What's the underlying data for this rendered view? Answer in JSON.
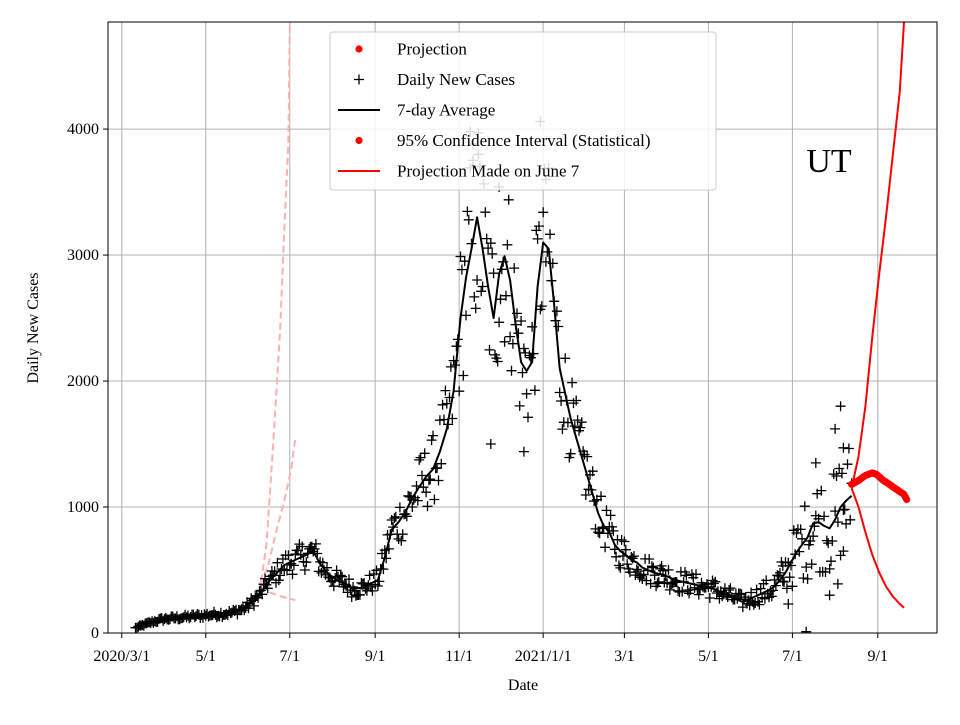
{
  "chart_data": {
    "type": "line",
    "title": "",
    "annotation": "UT",
    "xlabel": "Date",
    "ylabel": "Daily New Cases",
    "x_unit": "days since 2020-03-01",
    "xlim": [
      -10,
      592
    ],
    "ylim": [
      0,
      4850
    ],
    "grid": true,
    "x_ticks": [
      {
        "label": "2020/3/1",
        "value": 0
      },
      {
        "label": "5/1",
        "value": 61
      },
      {
        "label": "7/1",
        "value": 122
      },
      {
        "label": "9/1",
        "value": 184
      },
      {
        "label": "11/1",
        "value": 245
      },
      {
        "label": "2021/1/1",
        "value": 306
      },
      {
        "label": "3/1",
        "value": 365
      },
      {
        "label": "5/1",
        "value": 426
      },
      {
        "label": "7/1",
        "value": 487
      },
      {
        "label": "9/1",
        "value": 549
      }
    ],
    "y_ticks": [
      0,
      1000,
      2000,
      3000,
      4000
    ],
    "legend": {
      "placement": "upper-center",
      "entries": [
        {
          "label": "Projection",
          "marker": "dot",
          "color": "#ff0000"
        },
        {
          "label": "Daily New Cases",
          "marker": "plus",
          "color": "#000000"
        },
        {
          "label": "7-day Average",
          "marker": "line",
          "color": "#000000"
        },
        {
          "label": "95% Confidence Interval (Statistical)",
          "marker": "dot",
          "color": "#ff0000"
        },
        {
          "label": "Projection Made on June 7",
          "marker": "line",
          "color": "#ff0000"
        }
      ]
    },
    "average_keypoints": [
      [
        10,
        40
      ],
      [
        20,
        80
      ],
      [
        30,
        110
      ],
      [
        40,
        120
      ],
      [
        50,
        130
      ],
      [
        60,
        140
      ],
      [
        70,
        150
      ],
      [
        80,
        160
      ],
      [
        90,
        200
      ],
      [
        100,
        300
      ],
      [
        106,
        400
      ],
      [
        112,
        470
      ],
      [
        118,
        540
      ],
      [
        126,
        580
      ],
      [
        134,
        620
      ],
      [
        139,
        650
      ],
      [
        144,
        550
      ],
      [
        150,
        470
      ],
      [
        156,
        420
      ],
      [
        162,
        390
      ],
      [
        168,
        350
      ],
      [
        175,
        360
      ],
      [
        180,
        390
      ],
      [
        186,
        420
      ],
      [
        191,
        600
      ],
      [
        196,
        820
      ],
      [
        201,
        880
      ],
      [
        206,
        960
      ],
      [
        211,
        1070
      ],
      [
        216,
        1160
      ],
      [
        221,
        1240
      ],
      [
        226,
        1300
      ],
      [
        231,
        1440
      ],
      [
        236,
        1620
      ],
      [
        241,
        1920
      ],
      [
        246,
        2500
      ],
      [
        250,
        2820
      ],
      [
        254,
        3050
      ],
      [
        258,
        3300
      ],
      [
        262,
        3050
      ],
      [
        266,
        2750
      ],
      [
        270,
        2500
      ],
      [
        274,
        2850
      ],
      [
        278,
        2990
      ],
      [
        282,
        2800
      ],
      [
        286,
        2450
      ],
      [
        290,
        2150
      ],
      [
        294,
        2080
      ],
      [
        298,
        2150
      ],
      [
        302,
        2750
      ],
      [
        306,
        3100
      ],
      [
        310,
        3050
      ],
      [
        314,
        2600
      ],
      [
        318,
        2100
      ],
      [
        322,
        1900
      ],
      [
        326,
        1700
      ],
      [
        330,
        1550
      ],
      [
        334,
        1400
      ],
      [
        338,
        1250
      ],
      [
        342,
        1100
      ],
      [
        346,
        950
      ],
      [
        350,
        850
      ],
      [
        354,
        800
      ],
      [
        358,
        700
      ],
      [
        362,
        650
      ],
      [
        366,
        620
      ],
      [
        370,
        580
      ],
      [
        374,
        560
      ],
      [
        378,
        520
      ],
      [
        382,
        500
      ],
      [
        386,
        480
      ],
      [
        390,
        470
      ],
      [
        394,
        460
      ],
      [
        398,
        440
      ],
      [
        402,
        420
      ],
      [
        406,
        410
      ],
      [
        410,
        400
      ],
      [
        414,
        390
      ],
      [
        418,
        380
      ],
      [
        422,
        370
      ],
      [
        426,
        360
      ],
      [
        430,
        350
      ],
      [
        434,
        330
      ],
      [
        438,
        310
      ],
      [
        442,
        290
      ],
      [
        446,
        270
      ],
      [
        450,
        250
      ],
      [
        454,
        260
      ],
      [
        458,
        280
      ],
      [
        462,
        300
      ],
      [
        466,
        320
      ],
      [
        470,
        340
      ],
      [
        474,
        370
      ],
      [
        478,
        420
      ],
      [
        482,
        480
      ],
      [
        486,
        560
      ],
      [
        490,
        640
      ],
      [
        494,
        700
      ],
      [
        498,
        760
      ],
      [
        502,
        870
      ],
      [
        506,
        880
      ],
      [
        510,
        850
      ],
      [
        514,
        830
      ],
      [
        518,
        900
      ],
      [
        522,
        1000
      ],
      [
        526,
        1050
      ],
      [
        530,
        1090
      ]
    ],
    "noise_amplitudes": [
      [
        0,
        0.15
      ],
      [
        240,
        0.22
      ],
      [
        260,
        0.28
      ],
      [
        330,
        0.2
      ],
      [
        370,
        0.22
      ],
      [
        460,
        0.25
      ],
      [
        500,
        0.45
      ],
      [
        560,
        0.45
      ]
    ],
    "daily_new_cases_outliers": [
      [
        253,
        3980
      ],
      [
        255,
        3880
      ],
      [
        259,
        3800
      ],
      [
        268,
        1500
      ],
      [
        274,
        3540
      ],
      [
        292,
        1440
      ],
      [
        304,
        4060
      ],
      [
        308,
        3600
      ],
      [
        480,
        410
      ],
      [
        484,
        230
      ],
      [
        497,
        10
      ],
      [
        504,
        1350
      ],
      [
        518,
        1620
      ],
      [
        522,
        1800
      ],
      [
        524,
        1470
      ],
      [
        524,
        650
      ],
      [
        520,
        390
      ],
      [
        514,
        300
      ]
    ],
    "confidence_interval_upper": [
      [
        530,
        1150
      ],
      [
        535,
        1400
      ],
      [
        540,
        1800
      ],
      [
        545,
        2350
      ],
      [
        550,
        2850
      ],
      [
        555,
        3300
      ],
      [
        560,
        3800
      ],
      [
        565,
        4300
      ],
      [
        568,
        4850
      ]
    ],
    "confidence_interval_lower": [
      [
        530,
        1150
      ],
      [
        535,
        1000
      ],
      [
        540,
        800
      ],
      [
        545,
        620
      ],
      [
        550,
        480
      ],
      [
        555,
        370
      ],
      [
        560,
        290
      ],
      [
        565,
        230
      ],
      [
        568,
        200
      ]
    ],
    "projection": [
      [
        530,
        1180
      ],
      [
        535,
        1210
      ],
      [
        540,
        1250
      ],
      [
        545,
        1270
      ],
      [
        548,
        1260
      ],
      [
        552,
        1220
      ],
      [
        556,
        1190
      ],
      [
        560,
        1160
      ],
      [
        564,
        1130
      ],
      [
        568,
        1100
      ],
      [
        570,
        1060
      ]
    ],
    "earlier_projection_upper": [
      [
        100,
        320
      ],
      [
        105,
        700
      ],
      [
        110,
        1500
      ],
      [
        115,
        2400
      ],
      [
        118,
        3200
      ],
      [
        121,
        3900
      ],
      [
        122,
        4850
      ]
    ],
    "earlier_projection_mid": [
      [
        100,
        380
      ],
      [
        106,
        520
      ],
      [
        112,
        800
      ],
      [
        118,
        1050
      ],
      [
        123,
        1300
      ],
      [
        126,
        1550
      ]
    ],
    "earlier_projection_lower": [
      [
        100,
        360
      ],
      [
        108,
        320
      ],
      [
        116,
        290
      ],
      [
        126,
        260
      ]
    ]
  }
}
